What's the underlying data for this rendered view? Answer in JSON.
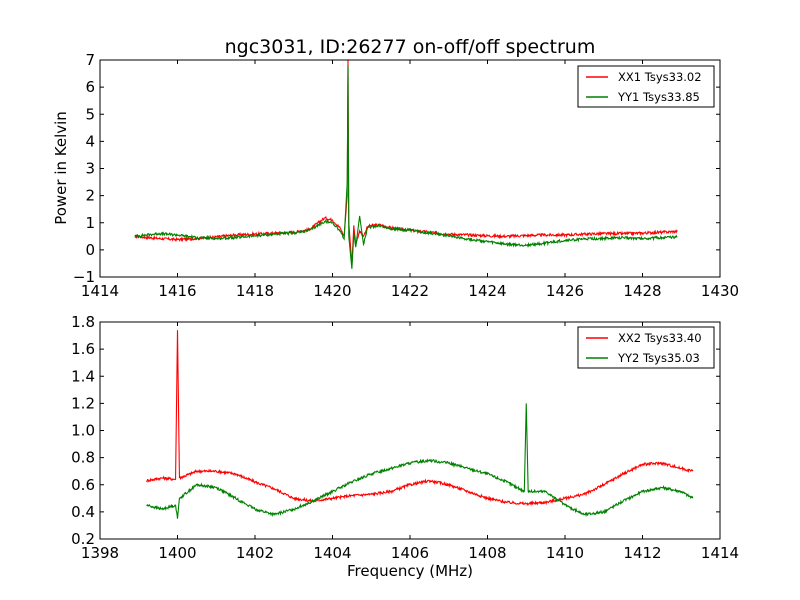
{
  "title": "ngc3031, ID:26277 on-off/off spectrum",
  "chart_data": [
    {
      "type": "line",
      "ylabel": "Power in Kelvin",
      "xlabel": "",
      "xlim": [
        1414,
        1430
      ],
      "ylim": [
        -1,
        7
      ],
      "xticks": [
        "1414",
        "1416",
        "1418",
        "1420",
        "1422",
        "1424",
        "1426",
        "1428",
        "1430"
      ],
      "yticks": [
        "−1",
        "0",
        "1",
        "2",
        "3",
        "4",
        "5",
        "6",
        "7"
      ],
      "grid": false,
      "legend_position": "top-right",
      "series": [
        {
          "name": "XX1 Tsys33.02",
          "color": "#ff0000",
          "x": [
            1414.9,
            1415.5,
            1416.0,
            1416.5,
            1417.0,
            1417.5,
            1418.0,
            1418.5,
            1419.0,
            1419.4,
            1419.8,
            1420.0,
            1420.2,
            1420.3,
            1420.38,
            1420.4,
            1420.42,
            1420.5,
            1420.55,
            1420.6,
            1420.7,
            1420.8,
            1420.9,
            1421.0,
            1421.2,
            1421.5,
            1422.0,
            1422.5,
            1423.0,
            1423.5,
            1424.0,
            1424.5,
            1425.0,
            1425.5,
            1426.0,
            1426.5,
            1427.0,
            1427.5,
            1428.0,
            1428.5,
            1428.9
          ],
          "y": [
            0.5,
            0.42,
            0.38,
            0.42,
            0.48,
            0.55,
            0.58,
            0.62,
            0.65,
            0.75,
            1.18,
            1.1,
            0.8,
            0.5,
            2.0,
            7.0,
            1.0,
            -0.55,
            0.9,
            0.2,
            0.7,
            0.5,
            0.85,
            0.9,
            0.92,
            0.82,
            0.72,
            0.65,
            0.58,
            0.55,
            0.52,
            0.5,
            0.53,
            0.55,
            0.55,
            0.58,
            0.6,
            0.6,
            0.62,
            0.65,
            0.68
          ]
        },
        {
          "name": "YY1 Tsys33.85",
          "color": "#008000",
          "x": [
            1414.9,
            1415.5,
            1416.0,
            1416.5,
            1417.0,
            1417.5,
            1418.0,
            1418.5,
            1419.0,
            1419.4,
            1419.8,
            1420.0,
            1420.2,
            1420.3,
            1420.38,
            1420.4,
            1420.42,
            1420.5,
            1420.55,
            1420.6,
            1420.7,
            1420.8,
            1420.9,
            1421.0,
            1421.2,
            1421.5,
            1422.0,
            1422.5,
            1423.0,
            1423.5,
            1424.0,
            1424.5,
            1425.0,
            1425.5,
            1426.0,
            1426.5,
            1427.0,
            1427.5,
            1428.0,
            1428.5,
            1428.9
          ],
          "y": [
            0.5,
            0.6,
            0.55,
            0.45,
            0.42,
            0.45,
            0.52,
            0.58,
            0.62,
            0.72,
            1.05,
            1.0,
            0.7,
            0.4,
            2.5,
            6.8,
            0.5,
            -0.7,
            0.6,
            0.1,
            1.25,
            0.2,
            0.78,
            0.85,
            0.9,
            0.78,
            0.72,
            0.62,
            0.52,
            0.4,
            0.3,
            0.2,
            0.17,
            0.25,
            0.35,
            0.4,
            0.42,
            0.45,
            0.42,
            0.45,
            0.47
          ]
        }
      ]
    },
    {
      "type": "line",
      "ylabel": "",
      "xlabel": "Frequency (MHz)",
      "xlim": [
        1398,
        1414
      ],
      "ylim": [
        0.2,
        1.8
      ],
      "xticks": [
        "1398",
        "1400",
        "1402",
        "1404",
        "1406",
        "1408",
        "1410",
        "1412",
        "1414"
      ],
      "yticks": [
        "0.2",
        "0.4",
        "0.6",
        "0.8",
        "1.0",
        "1.2",
        "1.4",
        "1.6",
        "1.8"
      ],
      "grid": false,
      "legend_position": "top-right",
      "series": [
        {
          "name": "XX2 Tsys33.40",
          "color": "#ff0000",
          "x": [
            1399.2,
            1399.6,
            1399.95,
            1400.0,
            1400.05,
            1400.5,
            1401.0,
            1401.5,
            1402.0,
            1402.5,
            1403.0,
            1403.5,
            1404.0,
            1404.5,
            1405.0,
            1405.5,
            1406.0,
            1406.5,
            1407.0,
            1407.5,
            1408.0,
            1408.5,
            1409.0,
            1409.5,
            1410.0,
            1410.5,
            1411.0,
            1411.5,
            1412.0,
            1412.5,
            1413.0,
            1413.3
          ],
          "y": [
            0.63,
            0.65,
            0.64,
            1.74,
            0.65,
            0.7,
            0.7,
            0.68,
            0.62,
            0.57,
            0.5,
            0.48,
            0.5,
            0.52,
            0.53,
            0.55,
            0.6,
            0.63,
            0.6,
            0.55,
            0.5,
            0.47,
            0.46,
            0.47,
            0.5,
            0.53,
            0.6,
            0.68,
            0.75,
            0.76,
            0.72,
            0.7
          ]
        },
        {
          "name": "YY2 Tsys35.03",
          "color": "#008000",
          "x": [
            1399.2,
            1399.6,
            1399.95,
            1400.0,
            1400.05,
            1400.5,
            1401.0,
            1401.5,
            1402.0,
            1402.5,
            1403.0,
            1403.5,
            1404.0,
            1404.5,
            1405.0,
            1405.5,
            1406.0,
            1406.5,
            1407.0,
            1407.5,
            1408.0,
            1408.5,
            1408.95,
            1409.0,
            1409.05,
            1409.5,
            1410.0,
            1410.5,
            1411.0,
            1411.5,
            1412.0,
            1412.5,
            1413.0,
            1413.3
          ],
          "y": [
            0.45,
            0.42,
            0.45,
            0.35,
            0.5,
            0.6,
            0.58,
            0.5,
            0.42,
            0.38,
            0.42,
            0.48,
            0.55,
            0.62,
            0.68,
            0.72,
            0.76,
            0.78,
            0.76,
            0.72,
            0.68,
            0.62,
            0.55,
            1.2,
            0.55,
            0.55,
            0.45,
            0.38,
            0.4,
            0.48,
            0.55,
            0.58,
            0.55,
            0.5
          ]
        }
      ]
    }
  ]
}
